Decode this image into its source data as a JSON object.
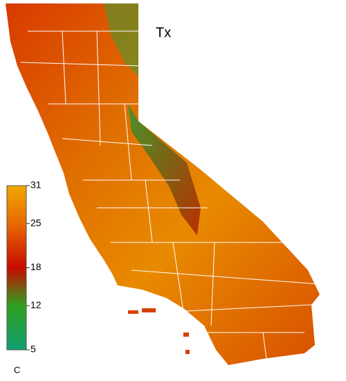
{
  "map": {
    "title": "Tx",
    "colorbar": {
      "range": [
        5,
        31
      ],
      "ticks": [
        31,
        25,
        18,
        12,
        5
      ],
      "unit": "C",
      "colors": [
        "#f0a800",
        "#e86a00",
        "#c80a00",
        "#30a020",
        "#10a070"
      ]
    }
  }
}
